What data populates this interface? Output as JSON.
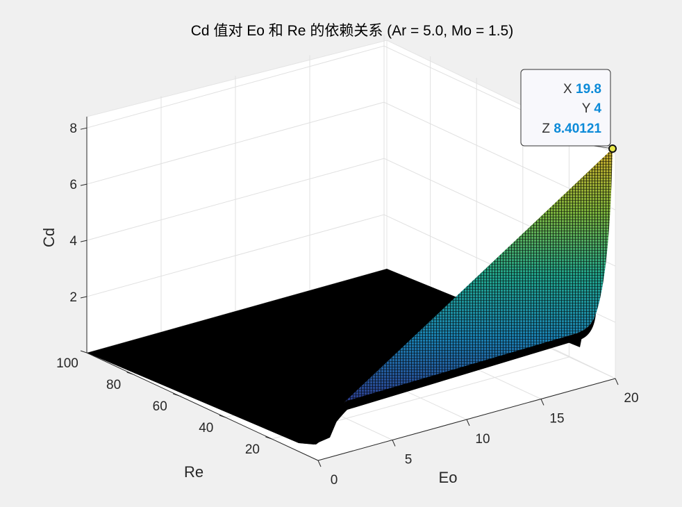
{
  "chart_data": {
    "type": "surface",
    "title": "Cd 值对 Eo 和 Re 的依赖关系 (Ar = 5.0, Mo = 1.5)",
    "xlabel": "Eo",
    "ylabel": "Re",
    "zlabel": "Cd",
    "xlim": [
      0,
      20
    ],
    "ylim": [
      4,
      100
    ],
    "zlim": [
      0,
      8.4
    ],
    "x_ticks": [
      "0",
      "5",
      "10",
      "15",
      "20"
    ],
    "y_ticks": [
      "20",
      "40",
      "60",
      "80",
      "100"
    ],
    "z_ticks": [
      "2",
      "4",
      "6",
      "8"
    ],
    "grid": true,
    "colormap": "parula",
    "edge_color": "#000000",
    "surface_samples": {
      "Eo": [
        0,
        5,
        10,
        15,
        19.8
      ],
      "Re_4": [
        0.55,
        1.8,
        3.7,
        5.9,
        8.40121
      ],
      "Re_100": [
        0.05,
        0.1,
        0.2,
        0.3,
        0.4
      ]
    },
    "datatip": {
      "x_label": "X",
      "x": "19.8",
      "y_label": "Y",
      "y": "4",
      "z_label": "Z",
      "z": "8.40121"
    }
  }
}
